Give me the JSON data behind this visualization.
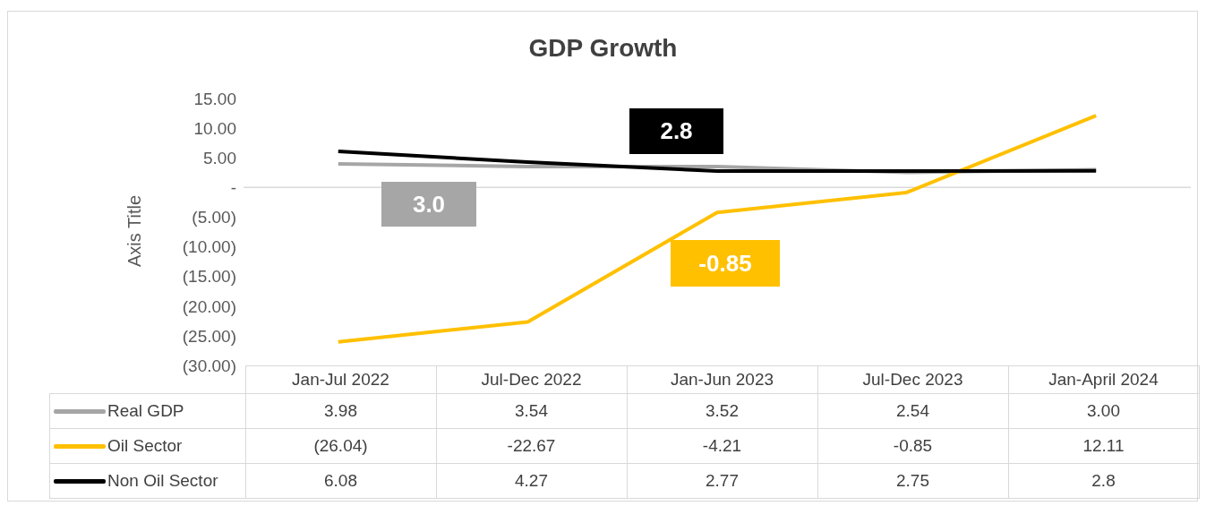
{
  "chart_data": {
    "type": "line",
    "title": "GDP Growth",
    "ylabel": "Axis Title",
    "categories": [
      "Jan-Jul 2022",
      "Jul-Dec 2022",
      "Jan-Jun 2023",
      "Jul-Dec 2023",
      "Jan-April 2024"
    ],
    "series": [
      {
        "name": "Real GDP",
        "color": "#a6a6a6",
        "values": [
          3.98,
          3.54,
          3.52,
          2.54,
          3.0
        ],
        "value_labels": [
          "3.98",
          "3.54",
          "3.52",
          "2.54",
          "3.00"
        ]
      },
      {
        "name": "Oil Sector",
        "color": "#ffc000",
        "values": [
          -26.04,
          -22.67,
          -4.21,
          -0.85,
          12.11
        ],
        "value_labels": [
          "(26.04)",
          "-22.67",
          "-4.21",
          "-0.85",
          "12.11"
        ]
      },
      {
        "name": "Non Oil Sector",
        "color": "#000000",
        "values": [
          6.08,
          4.27,
          2.77,
          2.75,
          2.8
        ],
        "value_labels": [
          "6.08",
          "4.27",
          "2.77",
          "2.75",
          "2.8"
        ]
      }
    ],
    "ylim": [
      -30,
      15
    ],
    "yticks": [
      {
        "value": 15,
        "label": "15.00"
      },
      {
        "value": 10,
        "label": "10.00"
      },
      {
        "value": 5,
        "label": "5.00"
      },
      {
        "value": 0,
        "label": "-"
      },
      {
        "value": -5,
        "label": "(5.00)"
      },
      {
        "value": -10,
        "label": "(10.00)"
      },
      {
        "value": -15,
        "label": "(15.00)"
      },
      {
        "value": -20,
        "label": "(20.00)"
      },
      {
        "value": -25,
        "label": "(25.00)"
      },
      {
        "value": -30,
        "label": "(30.00)"
      }
    ],
    "ref_lines": [
      {
        "axis": "y",
        "value": 0,
        "color": "#d9d9d9"
      }
    ],
    "annotations": [
      "2.8",
      "3.0",
      "-0.85"
    ],
    "grid": false,
    "legend": "bottom",
    "marker": "none",
    "line_style": "solid"
  }
}
